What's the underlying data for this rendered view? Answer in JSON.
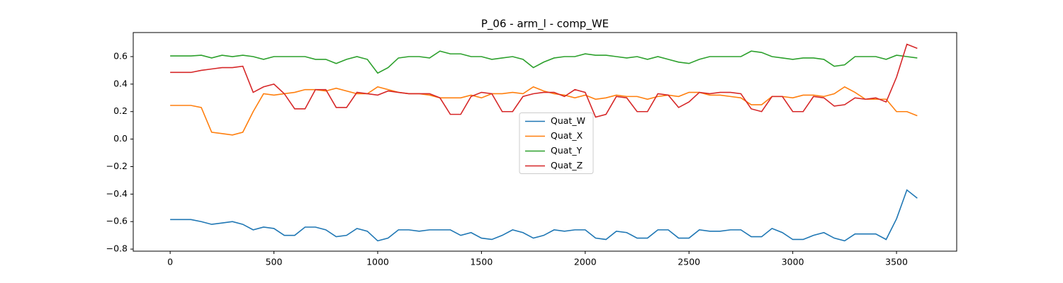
{
  "chart_data": {
    "type": "line",
    "title": "P_06 - arm_l - comp_WE",
    "x": [
      0,
      50,
      100,
      150,
      200,
      250,
      300,
      350,
      400,
      450,
      500,
      550,
      600,
      650,
      700,
      750,
      800,
      850,
      900,
      950,
      1000,
      1050,
      1100,
      1150,
      1200,
      1250,
      1300,
      1350,
      1400,
      1450,
      1500,
      1550,
      1600,
      1650,
      1700,
      1750,
      1800,
      1850,
      1900,
      1950,
      2000,
      2050,
      2100,
      2150,
      2200,
      2250,
      2300,
      2350,
      2400,
      2450,
      2500,
      2550,
      2600,
      2650,
      2700,
      2750,
      2800,
      2850,
      2900,
      2950,
      3000,
      3050,
      3100,
      3150,
      3200,
      3250,
      3300,
      3350,
      3400,
      3450,
      3500,
      3550,
      3600
    ],
    "series": [
      {
        "name": "Quat_W",
        "color": "#1f77b4",
        "values": [
          -0.585,
          -0.585,
          -0.585,
          -0.6,
          -0.62,
          -0.61,
          -0.6,
          -0.62,
          -0.66,
          -0.64,
          -0.65,
          -0.7,
          -0.7,
          -0.64,
          -0.64,
          -0.66,
          -0.71,
          -0.7,
          -0.65,
          -0.67,
          -0.74,
          -0.72,
          -0.66,
          -0.66,
          -0.67,
          -0.66,
          -0.66,
          -0.66,
          -0.7,
          -0.68,
          -0.72,
          -0.73,
          -0.7,
          -0.66,
          -0.68,
          -0.72,
          -0.7,
          -0.66,
          -0.67,
          -0.66,
          -0.66,
          -0.72,
          -0.73,
          -0.67,
          -0.68,
          -0.72,
          -0.72,
          -0.66,
          -0.66,
          -0.72,
          -0.72,
          -0.66,
          -0.67,
          -0.67,
          -0.66,
          -0.66,
          -0.71,
          -0.71,
          -0.65,
          -0.68,
          -0.73,
          -0.73,
          -0.7,
          -0.68,
          -0.72,
          -0.74,
          -0.69,
          -0.69,
          -0.69,
          -0.73,
          -0.58,
          -0.37,
          -0.43
        ]
      },
      {
        "name": "Quat_X",
        "color": "#ff7f0e",
        "values": [
          0.245,
          0.245,
          0.245,
          0.23,
          0.05,
          0.04,
          0.03,
          0.05,
          0.2,
          0.33,
          0.32,
          0.33,
          0.34,
          0.36,
          0.36,
          0.35,
          0.37,
          0.35,
          0.33,
          0.33,
          0.38,
          0.36,
          0.34,
          0.33,
          0.33,
          0.32,
          0.3,
          0.3,
          0.3,
          0.32,
          0.3,
          0.33,
          0.33,
          0.34,
          0.33,
          0.38,
          0.35,
          0.33,
          0.32,
          0.3,
          0.32,
          0.29,
          0.3,
          0.32,
          0.31,
          0.31,
          0.29,
          0.31,
          0.32,
          0.31,
          0.34,
          0.34,
          0.32,
          0.32,
          0.31,
          0.3,
          0.25,
          0.25,
          0.31,
          0.31,
          0.3,
          0.32,
          0.32,
          0.31,
          0.33,
          0.38,
          0.34,
          0.29,
          0.29,
          0.29,
          0.2,
          0.2,
          0.17
        ]
      },
      {
        "name": "Quat_Y",
        "color": "#2ca02c",
        "values": [
          0.605,
          0.605,
          0.605,
          0.61,
          0.59,
          0.61,
          0.6,
          0.61,
          0.6,
          0.58,
          0.6,
          0.6,
          0.6,
          0.6,
          0.58,
          0.58,
          0.55,
          0.58,
          0.6,
          0.58,
          0.48,
          0.52,
          0.59,
          0.6,
          0.6,
          0.59,
          0.64,
          0.62,
          0.62,
          0.6,
          0.6,
          0.58,
          0.59,
          0.6,
          0.58,
          0.52,
          0.56,
          0.59,
          0.6,
          0.6,
          0.62,
          0.61,
          0.61,
          0.6,
          0.59,
          0.6,
          0.58,
          0.6,
          0.58,
          0.56,
          0.55,
          0.58,
          0.6,
          0.6,
          0.6,
          0.6,
          0.64,
          0.63,
          0.6,
          0.59,
          0.58,
          0.59,
          0.59,
          0.58,
          0.53,
          0.54,
          0.6,
          0.6,
          0.6,
          0.58,
          0.61,
          0.6,
          0.59
        ]
      },
      {
        "name": "Quat_Z",
        "color": "#d62728",
        "values": [
          0.485,
          0.485,
          0.485,
          0.5,
          0.51,
          0.52,
          0.52,
          0.53,
          0.34,
          0.38,
          0.4,
          0.33,
          0.22,
          0.22,
          0.36,
          0.36,
          0.23,
          0.23,
          0.34,
          0.33,
          0.32,
          0.35,
          0.34,
          0.33,
          0.33,
          0.33,
          0.3,
          0.18,
          0.18,
          0.31,
          0.34,
          0.33,
          0.2,
          0.2,
          0.31,
          0.33,
          0.34,
          0.34,
          0.31,
          0.36,
          0.34,
          0.16,
          0.18,
          0.31,
          0.3,
          0.2,
          0.2,
          0.33,
          0.32,
          0.23,
          0.27,
          0.34,
          0.33,
          0.34,
          0.34,
          0.33,
          0.22,
          0.2,
          0.31,
          0.31,
          0.2,
          0.2,
          0.31,
          0.3,
          0.24,
          0.25,
          0.3,
          0.29,
          0.3,
          0.27,
          0.45,
          0.69,
          0.66
        ]
      }
    ],
    "xlim": [
      -178,
      3790
    ],
    "xticks": [
      0,
      500,
      1000,
      1500,
      2000,
      2500,
      3000,
      3500
    ],
    "ylim": [
      -0.815,
      0.775
    ],
    "yticks": [
      {
        "value": -0.8,
        "label": "−0.8"
      },
      {
        "value": -0.6,
        "label": "−0.6"
      },
      {
        "value": -0.4,
        "label": "−0.4"
      },
      {
        "value": -0.2,
        "label": "−0.2"
      },
      {
        "value": 0,
        "label": "0.0"
      },
      0.2,
      0.4,
      0.6
    ],
    "legend": "center"
  }
}
